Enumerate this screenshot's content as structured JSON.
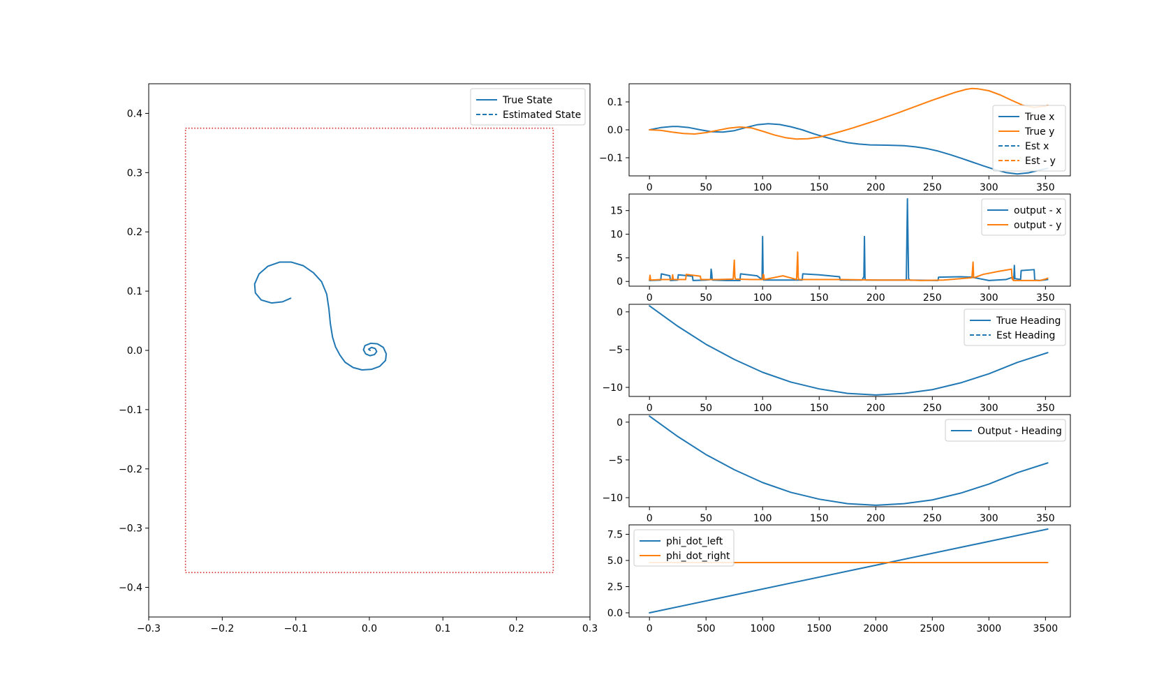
{
  "figure": {
    "colors": {
      "blue": "#1f77b4",
      "orange": "#ff7f0e",
      "red": "#d62728",
      "axis": "#000000",
      "legend_edge": "#cccccc"
    }
  },
  "chart_data": [
    {
      "id": "trajectory",
      "type": "line",
      "title": "",
      "xlabel": "",
      "ylabel": "",
      "xlim": [
        -0.3,
        0.3
      ],
      "ylim": [
        -0.45,
        0.45
      ],
      "xticks": [
        -0.3,
        -0.2,
        -0.1,
        0.0,
        0.1,
        0.2,
        0.3
      ],
      "xtick_labels": [
        "−0.3",
        "−0.2",
        "−0.1",
        "0.0",
        "0.1",
        "0.2",
        "0.3"
      ],
      "yticks": [
        0.4,
        0.3,
        0.2,
        0.1,
        0.0,
        -0.1,
        -0.2,
        -0.3,
        -0.4
      ],
      "ytick_labels": [
        "0.4",
        "0.3",
        "0.2",
        "0.1",
        "0.0",
        "−0.1",
        "−0.2",
        "−0.3",
        "−0.4"
      ],
      "grid": false,
      "legend": {
        "placement": "upper right",
        "entries": [
          "True State",
          "Estimated State"
        ]
      },
      "boundary": {
        "style": "dotted",
        "color": "red",
        "x": [
          -0.25,
          0.25
        ],
        "y": [
          -0.375,
          0.375
        ]
      },
      "series": [
        {
          "name": "True State",
          "style": "solid",
          "color": "blue",
          "x": [
            -0.107,
            -0.118,
            -0.133,
            -0.147,
            -0.155,
            -0.156,
            -0.15,
            -0.138,
            -0.122,
            -0.106,
            -0.09,
            -0.076,
            -0.065,
            -0.058,
            -0.055,
            -0.053,
            -0.05,
            -0.046,
            -0.04,
            -0.033,
            -0.022,
            -0.01,
            0.003,
            0.014,
            0.022,
            0.023,
            0.019,
            0.011,
            0.002,
            -0.006,
            -0.008,
            -0.005,
            0.001,
            0.007,
            0.01,
            0.008,
            0.003,
            -0.001,
            0.001
          ],
          "y": [
            0.088,
            0.082,
            0.08,
            0.085,
            0.097,
            0.112,
            0.129,
            0.142,
            0.149,
            0.149,
            0.143,
            0.131,
            0.116,
            0.095,
            0.07,
            0.045,
            0.022,
            0.006,
            -0.008,
            -0.02,
            -0.029,
            -0.033,
            -0.032,
            -0.027,
            -0.017,
            -0.006,
            0.005,
            0.011,
            0.012,
            0.008,
            0.001,
            -0.006,
            -0.009,
            -0.007,
            -0.002,
            0.003,
            0.005,
            0.002,
            0.0
          ]
        },
        {
          "name": "Estimated State",
          "style": "dashed",
          "color": "blue",
          "x": [],
          "y": []
        }
      ]
    },
    {
      "id": "position",
      "type": "line",
      "title": "",
      "xlabel": "",
      "ylabel": "",
      "xlim": [
        -18,
        372
      ],
      "ylim": [
        -0.165,
        0.165
      ],
      "xticks": [
        0,
        50,
        100,
        150,
        200,
        250,
        300,
        350
      ],
      "xtick_labels": [
        "0",
        "50",
        "100",
        "150",
        "200",
        "250",
        "300",
        "350"
      ],
      "yticks": [
        0.1,
        0.0,
        -0.1
      ],
      "ytick_labels": [
        "0.1",
        "0.0",
        "−0.1"
      ],
      "grid": false,
      "legend": {
        "placement": "lower right",
        "entries": [
          "True x",
          "True y",
          "Est x",
          "Est - y"
        ]
      },
      "series": [
        {
          "name": "True x",
          "style": "solid",
          "color": "blue",
          "x": [
            0,
            10,
            20,
            25,
            35,
            45,
            55,
            65,
            75,
            85,
            95,
            105,
            115,
            125,
            135,
            145,
            155,
            165,
            175,
            185,
            195,
            210,
            225,
            235,
            245,
            255,
            265,
            275,
            285,
            295,
            305,
            315,
            325,
            335,
            345,
            352
          ],
          "y": [
            0.0,
            0.008,
            0.012,
            0.012,
            0.008,
            0.0,
            -0.007,
            -0.008,
            -0.003,
            0.008,
            0.018,
            0.022,
            0.019,
            0.011,
            0.0,
            -0.014,
            -0.026,
            -0.037,
            -0.046,
            -0.051,
            -0.054,
            -0.055,
            -0.057,
            -0.061,
            -0.067,
            -0.076,
            -0.088,
            -0.101,
            -0.115,
            -0.129,
            -0.142,
            -0.153,
            -0.158,
            -0.154,
            -0.144,
            -0.138
          ]
        },
        {
          "name": "True y",
          "style": "solid",
          "color": "orange",
          "x": [
            0,
            10,
            20,
            30,
            40,
            50,
            60,
            70,
            80,
            90,
            100,
            110,
            120,
            130,
            140,
            150,
            160,
            170,
            180,
            190,
            200,
            210,
            220,
            230,
            240,
            250,
            260,
            270,
            280,
            285,
            290,
            300,
            310,
            320,
            330,
            340,
            350,
            352
          ],
          "y": [
            0.0,
            -0.002,
            -0.008,
            -0.013,
            -0.015,
            -0.01,
            -0.002,
            0.006,
            0.01,
            0.007,
            -0.005,
            -0.018,
            -0.028,
            -0.033,
            -0.032,
            -0.026,
            -0.016,
            -0.005,
            0.007,
            0.02,
            0.033,
            0.047,
            0.061,
            0.076,
            0.091,
            0.106,
            0.12,
            0.134,
            0.145,
            0.148,
            0.147,
            0.14,
            0.125,
            0.106,
            0.088,
            0.08,
            0.085,
            0.088
          ]
        },
        {
          "name": "Est x",
          "style": "dashed",
          "color": "blue",
          "x": [],
          "y": []
        },
        {
          "name": "Est - y",
          "style": "dashed",
          "color": "orange",
          "x": [],
          "y": []
        }
      ]
    },
    {
      "id": "output_xy",
      "type": "line",
      "title": "",
      "xlabel": "",
      "ylabel": "",
      "xlim": [
        -18,
        372
      ],
      "ylim": [
        -1.0,
        18.5
      ],
      "xticks": [
        0,
        50,
        100,
        150,
        200,
        250,
        300,
        350
      ],
      "xtick_labels": [
        "0",
        "50",
        "100",
        "150",
        "200",
        "250",
        "300",
        "350"
      ],
      "yticks": [
        15,
        10,
        5,
        0
      ],
      "ytick_labels": [
        "15",
        "10",
        "5",
        "0"
      ],
      "grid": false,
      "legend": {
        "placement": "upper right",
        "entries": [
          "output - x",
          "output - y"
        ]
      },
      "series": [
        {
          "name": "output - x",
          "style": "solid",
          "color": "blue",
          "x": [
            0,
            10,
            10.5,
            18,
            18.5,
            25,
            25.5,
            38,
            38.5,
            50,
            54,
            54.5,
            55,
            55.5,
            68,
            80,
            80.5,
            95,
            99.5,
            100,
            100.5,
            101,
            110,
            130,
            135,
            135.5,
            150,
            168,
            168.5,
            188,
            189.5,
            190,
            190.5,
            191,
            205,
            227,
            228,
            229,
            230,
            255,
            255.5,
            275,
            285,
            300,
            315,
            320,
            322,
            322.5,
            323,
            328,
            328.5,
            340,
            340.5,
            345,
            352
          ],
          "y": [
            0.2,
            0.3,
            1.6,
            1.2,
            0.2,
            0.3,
            1.4,
            1.1,
            0.2,
            0.3,
            0.4,
            2.6,
            1.8,
            0.3,
            0.2,
            0.2,
            1.6,
            1.2,
            0.4,
            9.5,
            0.4,
            0.3,
            0.3,
            0.3,
            0.3,
            1.6,
            1.4,
            1.0,
            0.3,
            0.3,
            1.0,
            9.5,
            0.6,
            0.3,
            0.3,
            0.3,
            17.5,
            0.6,
            0.3,
            0.2,
            0.9,
            1.0,
            0.9,
            0.2,
            0.4,
            0.8,
            0.5,
            3.4,
            0.6,
            0.4,
            2.3,
            2.5,
            0.3,
            0.2,
            0.4
          ]
        },
        {
          "name": "output - y",
          "style": "solid",
          "color": "orange",
          "x": [
            0,
            0.5,
            1,
            1.5,
            10,
            20,
            20.5,
            21,
            21.5,
            32,
            32.5,
            45,
            45.5,
            60,
            74,
            75,
            75.5,
            76,
            90,
            100,
            100.5,
            101,
            101.5,
            118,
            130,
            131,
            131.5,
            132,
            145,
            170,
            200,
            230,
            240,
            260,
            285,
            286,
            286.5,
            287,
            295,
            310,
            320,
            320.5,
            321,
            321.5,
            345,
            350,
            352
          ],
          "y": [
            0.3,
            1.3,
            0.4,
            0.3,
            0.4,
            0.4,
            1.4,
            0.5,
            0.4,
            0.4,
            1.5,
            1.1,
            0.4,
            0.4,
            0.5,
            4.5,
            1.0,
            0.5,
            0.4,
            0.4,
            1.5,
            1.4,
            0.4,
            1.2,
            0.4,
            6.2,
            0.8,
            0.4,
            0.4,
            0.4,
            0.3,
            0.3,
            0.2,
            0.3,
            0.8,
            4.1,
            1.0,
            0.8,
            1.5,
            2.2,
            2.6,
            0.5,
            1.0,
            0.2,
            0.2,
            0.5,
            0.7
          ]
        }
      ]
    },
    {
      "id": "heading",
      "type": "line",
      "title": "",
      "xlabel": "",
      "ylabel": "",
      "xlim": [
        -18,
        372
      ],
      "ylim": [
        -11.2,
        1.0
      ],
      "xticks": [
        0,
        50,
        100,
        150,
        200,
        250,
        300,
        350
      ],
      "xtick_labels": [
        "0",
        "50",
        "100",
        "150",
        "200",
        "250",
        "300",
        "350"
      ],
      "yticks": [
        0,
        -5,
        -10
      ],
      "ytick_labels": [
        "0",
        "−5",
        "−10"
      ],
      "grid": false,
      "legend": {
        "placement": "upper right",
        "entries": [
          "True Heading",
          "Est Heading"
        ]
      },
      "series": [
        {
          "name": "True Heading",
          "style": "solid",
          "color": "blue",
          "x": [
            0,
            25,
            50,
            75,
            100,
            125,
            150,
            175,
            200,
            225,
            250,
            275,
            300,
            325,
            352
          ],
          "y": [
            0.8,
            -1.9,
            -4.3,
            -6.3,
            -8.0,
            -9.3,
            -10.2,
            -10.8,
            -11.0,
            -10.8,
            -10.3,
            -9.4,
            -8.2,
            -6.7,
            -5.4
          ]
        },
        {
          "name": "Est Heading",
          "style": "dashed",
          "color": "blue",
          "x": [],
          "y": []
        }
      ]
    },
    {
      "id": "output_heading",
      "type": "line",
      "title": "",
      "xlabel": "",
      "ylabel": "",
      "xlim": [
        -18,
        372
      ],
      "ylim": [
        -11.2,
        1.0
      ],
      "xticks": [
        0,
        50,
        100,
        150,
        200,
        250,
        300,
        350
      ],
      "xtick_labels": [
        "0",
        "50",
        "100",
        "150",
        "200",
        "250",
        "300",
        "350"
      ],
      "yticks": [
        0,
        -5,
        -10
      ],
      "ytick_labels": [
        "0",
        "−5",
        "−10"
      ],
      "grid": false,
      "legend": {
        "placement": "upper right",
        "entries": [
          "Output - Heading"
        ]
      },
      "series": [
        {
          "name": "Output - Heading",
          "style": "solid",
          "color": "blue",
          "x": [
            0,
            25,
            50,
            75,
            100,
            125,
            150,
            175,
            200,
            225,
            250,
            275,
            300,
            325,
            352
          ],
          "y": [
            0.8,
            -1.9,
            -4.3,
            -6.3,
            -8.0,
            -9.3,
            -10.2,
            -10.8,
            -11.0,
            -10.8,
            -10.3,
            -9.4,
            -8.2,
            -6.7,
            -5.4
          ]
        }
      ]
    },
    {
      "id": "wheel_speeds",
      "type": "line",
      "title": "",
      "xlabel": "",
      "ylabel": "",
      "xlim": [
        -180,
        3720
      ],
      "ylim": [
        -0.4,
        8.4
      ],
      "xticks": [
        0,
        500,
        1000,
        1500,
        2000,
        2500,
        3000,
        3500
      ],
      "xtick_labels": [
        "0",
        "500",
        "1000",
        "1500",
        "2000",
        "2500",
        "3000",
        "3500"
      ],
      "yticks": [
        7.5,
        5.0,
        2.5,
        0.0
      ],
      "ytick_labels": [
        "7.5",
        "5.0",
        "2.5",
        "0.0"
      ],
      "grid": false,
      "legend": {
        "placement": "upper left",
        "entries": [
          "phi_dot_left",
          "phi_dot_right"
        ]
      },
      "series": [
        {
          "name": "phi_dot_left",
          "style": "solid",
          "color": "blue",
          "x": [
            0,
            3520
          ],
          "y": [
            0.0,
            8.0
          ]
        },
        {
          "name": "phi_dot_right",
          "style": "solid",
          "color": "orange",
          "x": [
            0,
            3520
          ],
          "y": [
            4.8,
            4.8
          ]
        }
      ]
    }
  ]
}
